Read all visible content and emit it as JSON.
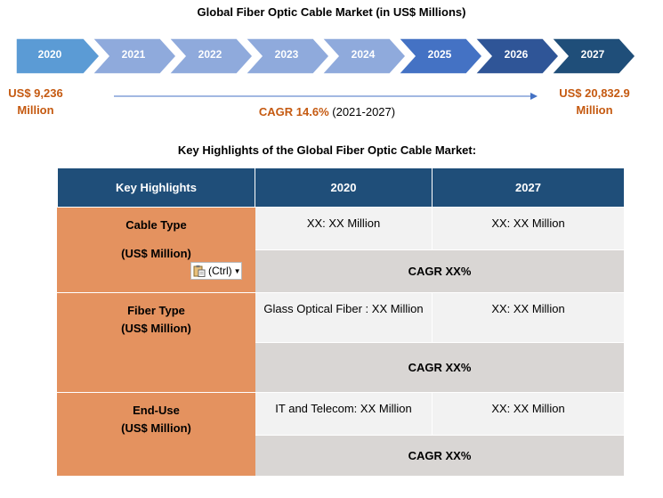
{
  "title": "Global Fiber Optic Cable Market (in US$ Millions)",
  "timeline": {
    "years": [
      "2020",
      "2021",
      "2022",
      "2023",
      "2024",
      "2025",
      "2026",
      "2027"
    ],
    "colors": [
      "#5b9bd5",
      "#8faadc",
      "#4472c4",
      "#2f5597",
      "#1f4e79"
    ]
  },
  "start_value": {
    "line1": "US$ 9,236",
    "line2": "Million"
  },
  "end_value": {
    "line1": "US$ 20,832.9",
    "line2": "Million"
  },
  "cagr": {
    "value": "CAGR 14.6%",
    "period": "(2021-2027)"
  },
  "subtitle": "Key Highlights of the Global Fiber Optic Cable Market:",
  "table": {
    "headers": [
      "Key Highlights",
      "2020",
      "2027"
    ],
    "rows": [
      {
        "line1": "Cable Type",
        "line2": "(US$ Million)",
        "v2020": "XX: XX Million",
        "v2027": "XX: XX Million",
        "cagr": "CAGR XX%"
      },
      {
        "line1": "Fiber Type",
        "line2": "(US$ Million)",
        "v2020": "Glass Optical Fiber : XX Million",
        "v2027": "XX: XX Million",
        "cagr": "CAGR XX%"
      },
      {
        "line1": "End-Use",
        "line2": "(US$ Million)",
        "v2020": "IT and Telecom: XX Million",
        "v2027": "XX: XX Million",
        "cagr": "CAGR XX%"
      }
    ]
  },
  "paste_options": {
    "label": "(Ctrl)",
    "icon": "clipboard-icon"
  }
}
